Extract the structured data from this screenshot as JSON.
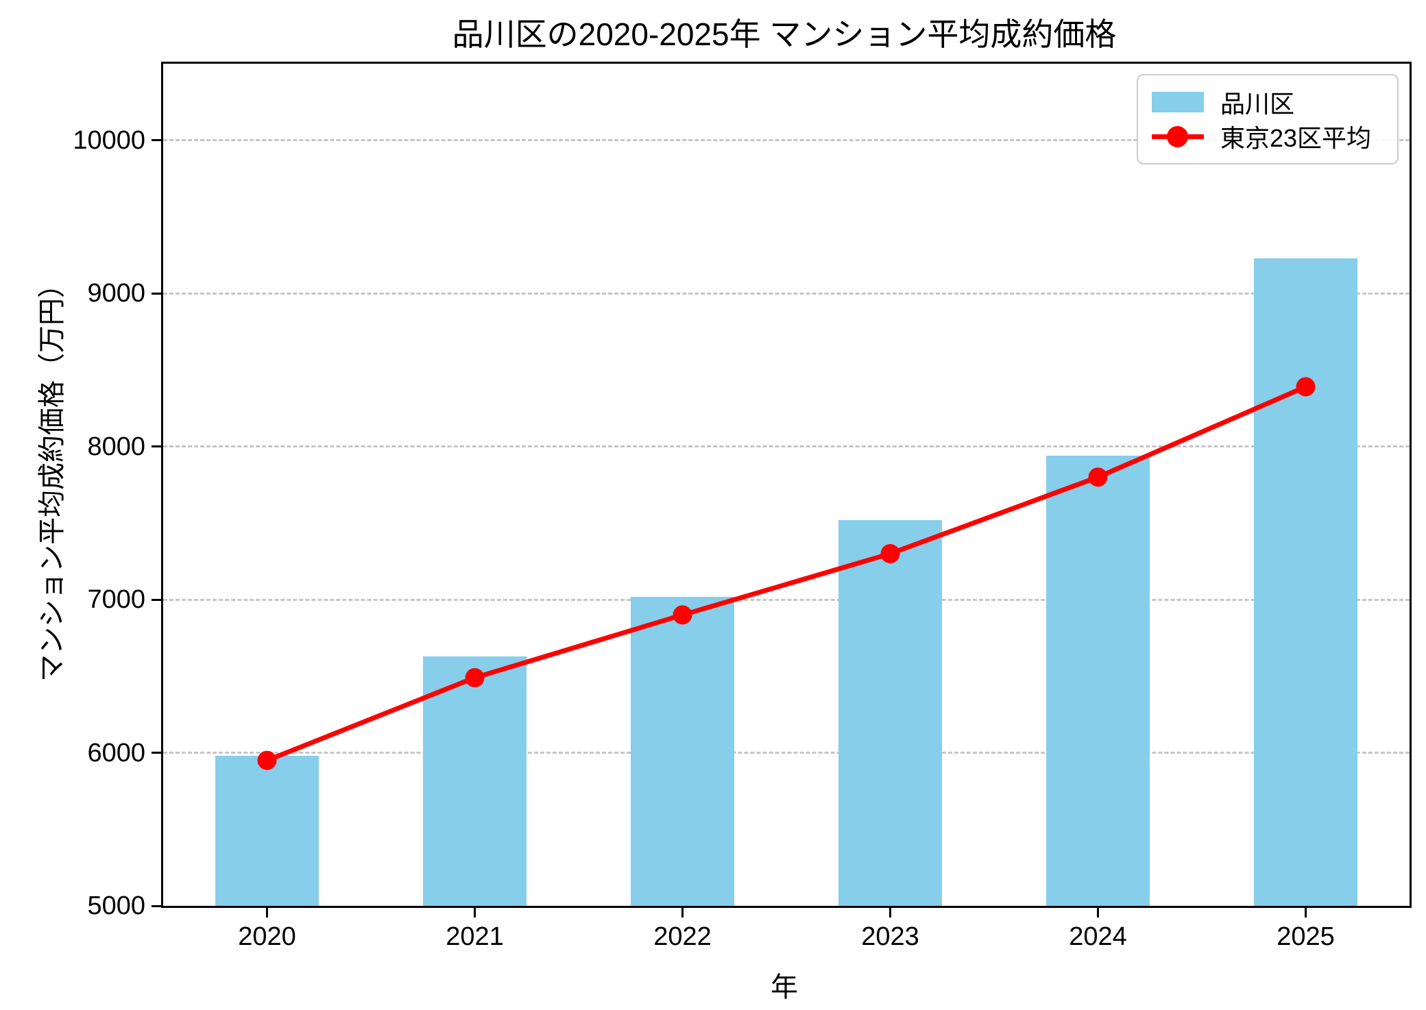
{
  "chart_data": {
    "type": "bar",
    "title": "品川区の2020-2025年 マンション平均成約価格",
    "xlabel": "年",
    "ylabel": "マンション平均成約価格（万円）",
    "categories": [
      "2020",
      "2021",
      "2022",
      "2023",
      "2024",
      "2025"
    ],
    "series": [
      {
        "name": "品川区",
        "type": "bar",
        "color": "#87CEEB",
        "values": [
          5980,
          6630,
          7020,
          7520,
          7940,
          9230
        ]
      },
      {
        "name": "東京23区平均",
        "type": "line",
        "color": "#FF0000",
        "values": [
          5950,
          6490,
          6900,
          7300,
          7800,
          8390
        ]
      }
    ],
    "ylim": [
      5000,
      10500
    ],
    "yticks": [
      5000,
      6000,
      7000,
      8000,
      9000,
      10000
    ],
    "grid": true,
    "grid_color": "#c6c6c6",
    "legend_position": "top-right"
  }
}
